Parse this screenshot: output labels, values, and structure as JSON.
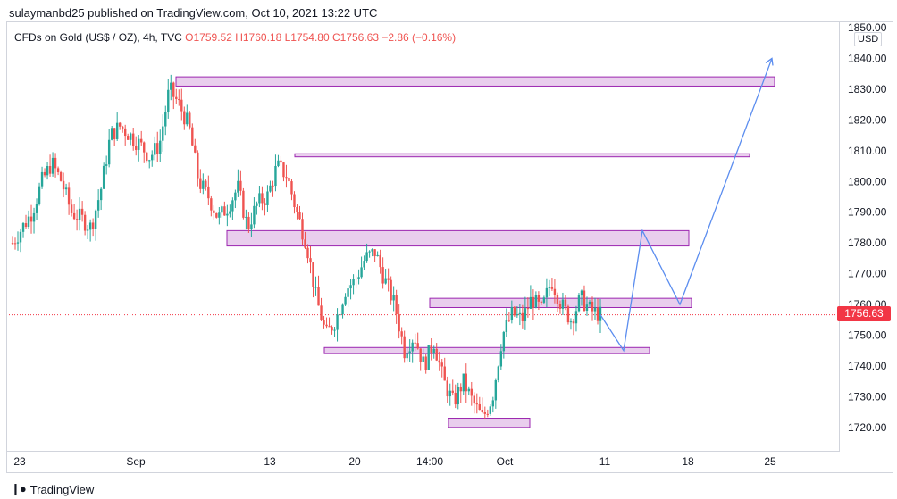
{
  "header": {
    "published": "sulaymanbd25 published on TradingView.com, Oct 10, 2021 13:22 UTC"
  },
  "legend": {
    "symbol": "CFDs on Gold (US$ / OZ), 4h, TVC",
    "ohlc": "O1759.52  H1760.18  L1754.80  C1756.63  −2.86 (−0.16%)"
  },
  "price_axis": {
    "currency": "USD",
    "last_price_label": "1756.63"
  },
  "footer": {
    "brand": "TradingView",
    "logo": "tradingview-logo-icon"
  },
  "colors": {
    "up": "#26a69a",
    "down": "#ef5350",
    "zone_fill": "#e1bee7",
    "zone_border": "#9c27b0",
    "path": "#5b8def",
    "last_price": "#f23645"
  },
  "chart_data": {
    "type": "candlestick",
    "symbol": "CFDs on Gold (US$ / OZ)",
    "interval": "4h",
    "source": "TVC",
    "ylim": [
      1715,
      1850
    ],
    "y_ticks": [
      1720,
      1730,
      1740,
      1750,
      1760,
      1770,
      1780,
      1790,
      1800,
      1810,
      1820,
      1830,
      1840,
      1850
    ],
    "y_tick_labels": [
      "1720.00",
      "1730.00",
      "1740.00",
      "1750.00",
      "1760.00",
      "1770.00",
      "1780.00",
      "1790.00",
      "1800.00",
      "1810.00",
      "1820.00",
      "1830.00",
      "1840.00",
      "1850.00"
    ],
    "x_tick_labels": [
      "23",
      "Sep",
      "13",
      "20",
      "14:00",
      "Oct",
      "11",
      "18",
      "25"
    ],
    "last_price": 1756.63,
    "close_path": [
      1780,
      1785,
      1790,
      1800,
      1806,
      1800,
      1790,
      1788,
      1785,
      1797,
      1815,
      1818,
      1815,
      1812,
      1808,
      1812,
      1830,
      1825,
      1818,
      1800,
      1795,
      1788,
      1792,
      1798,
      1785,
      1793,
      1795,
      1805,
      1802,
      1790,
      1780,
      1762,
      1750,
      1755,
      1765,
      1768,
      1775,
      1777,
      1768,
      1760,
      1745,
      1750,
      1740,
      1748,
      1735,
      1728,
      1735,
      1728,
      1723,
      1730,
      1750,
      1757,
      1755,
      1762,
      1758,
      1768,
      1760,
      1755,
      1762,
      1758,
      1756.63
    ],
    "zones": [
      {
        "low": 1831,
        "high": 1834
      },
      {
        "low": 1808,
        "high": 1809
      },
      {
        "low": 1779,
        "high": 1784
      },
      {
        "low": 1759,
        "high": 1762
      },
      {
        "low": 1744,
        "high": 1746
      },
      {
        "low": 1720,
        "high": 1723
      }
    ],
    "projection": [
      1756.63,
      1745,
      1784,
      1760,
      1840
    ]
  }
}
